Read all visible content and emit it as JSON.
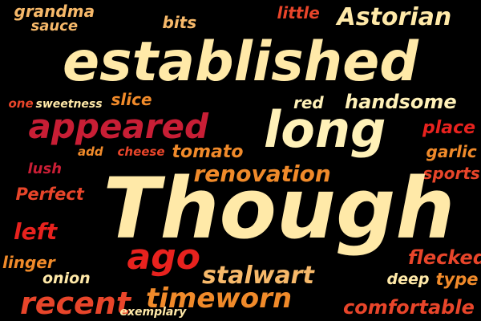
{
  "colors": {
    "background": "#000000",
    "cream": "#FFE9A8",
    "light_yellow": "#FFF1B8",
    "peach": "#F7B96A",
    "orange": "#F08A2A",
    "red_orange": "#E8452A",
    "bright_red": "#E8221E",
    "crimson": "#C81E35",
    "dark_red": "#A01028"
  },
  "words": [
    {
      "key": "grandma",
      "text": "grandma",
      "color": "peach"
    },
    {
      "key": "sauce",
      "text": "sauce",
      "color": "peach"
    },
    {
      "key": "bits",
      "text": "bits",
      "color": "peach"
    },
    {
      "key": "little",
      "text": "little",
      "color": "red_orange"
    },
    {
      "key": "Astorian",
      "text": "Astorian",
      "color": "cream"
    },
    {
      "key": "established",
      "text": "established",
      "color": "cream"
    },
    {
      "key": "one",
      "text": "one",
      "color": "red_orange"
    },
    {
      "key": "sweetness",
      "text": "sweetness",
      "color": "cream"
    },
    {
      "key": "slice",
      "text": "slice",
      "color": "orange"
    },
    {
      "key": "red",
      "text": "red",
      "color": "light_yellow"
    },
    {
      "key": "handsome",
      "text": "handsome",
      "color": "light_yellow"
    },
    {
      "key": "appeared",
      "text": "appeared",
      "color": "crimson"
    },
    {
      "key": "long",
      "text": "long",
      "color": "light_yellow"
    },
    {
      "key": "place",
      "text": "place",
      "color": "bright_red"
    },
    {
      "key": "add",
      "text": "add",
      "color": "orange"
    },
    {
      "key": "cheese",
      "text": "cheese",
      "color": "red_orange"
    },
    {
      "key": "tomato",
      "text": "tomato",
      "color": "orange"
    },
    {
      "key": "garlic",
      "text": "garlic",
      "color": "orange"
    },
    {
      "key": "lush",
      "text": "lush",
      "color": "crimson"
    },
    {
      "key": "renovation",
      "text": "renovation",
      "color": "orange"
    },
    {
      "key": "sports",
      "text": "sports",
      "color": "red_orange"
    },
    {
      "key": "Perfect",
      "text": "Perfect",
      "color": "red_orange"
    },
    {
      "key": "Though",
      "text": "Though",
      "color": "cream"
    },
    {
      "key": "left",
      "text": "left",
      "color": "bright_red"
    },
    {
      "key": "linger",
      "text": "linger",
      "color": "orange"
    },
    {
      "key": "ago",
      "text": "ago",
      "color": "bright_red"
    },
    {
      "key": "flecked",
      "text": "flecked",
      "color": "red_orange"
    },
    {
      "key": "onion",
      "text": "onion",
      "color": "cream"
    },
    {
      "key": "stalwart",
      "text": "stalwart",
      "color": "peach"
    },
    {
      "key": "deep",
      "text": "deep",
      "color": "cream"
    },
    {
      "key": "type",
      "text": "type",
      "color": "orange"
    },
    {
      "key": "recent",
      "text": "recent",
      "color": "red_orange"
    },
    {
      "key": "timeworn",
      "text": "timeworn",
      "color": "orange"
    },
    {
      "key": "exemplary",
      "text": "exemplary",
      "color": "cream"
    },
    {
      "key": "comfortable",
      "text": "comfortable",
      "color": "red_orange"
    }
  ]
}
